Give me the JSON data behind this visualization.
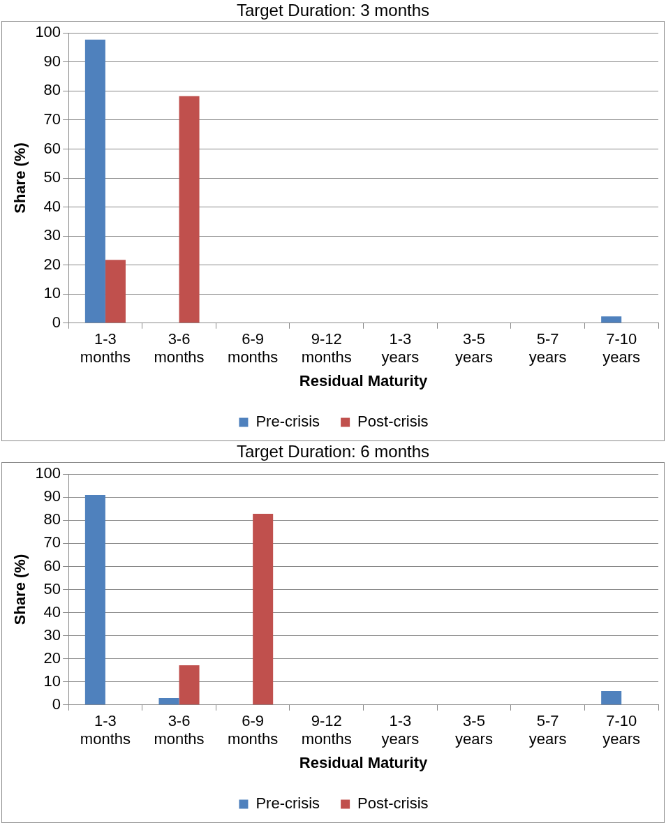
{
  "chart_data": [
    {
      "type": "bar",
      "title": "Target Duration: 3 months",
      "xlabel": "Residual Maturity",
      "ylabel": "Share (%)",
      "categories": [
        "1-3 months",
        "3-6 months",
        "6-9 months",
        "9-12 months",
        "1-3 years",
        "3-5 years",
        "5-7 years",
        "7-10 years"
      ],
      "series": [
        {
          "name": "Pre-crisis",
          "color": "#4f81bd",
          "values": [
            97.7,
            0,
            0,
            0,
            0,
            0,
            0,
            2.3
          ]
        },
        {
          "name": "Post-crisis",
          "color": "#c0504d",
          "values": [
            21.8,
            78.2,
            0,
            0,
            0,
            0,
            0,
            0
          ]
        }
      ],
      "ylim": [
        0,
        100
      ],
      "yticks": [
        0,
        10,
        20,
        30,
        40,
        50,
        60,
        70,
        80,
        90,
        100
      ],
      "grid": "y",
      "legend": "bottom"
    },
    {
      "type": "bar",
      "title": "Target Duration: 6 months",
      "xlabel": "Residual Maturity",
      "ylabel": "Share (%)",
      "categories": [
        "1-3 months",
        "3-6 months",
        "6-9 months",
        "9-12 months",
        "1-3 years",
        "3-5 years",
        "5-7 years",
        "7-10 years"
      ],
      "series": [
        {
          "name": "Pre-crisis",
          "color": "#4f81bd",
          "values": [
            91,
            3,
            0,
            0,
            0,
            0,
            0,
            6
          ]
        },
        {
          "name": "Post-crisis",
          "color": "#c0504d",
          "values": [
            0,
            17.2,
            82.8,
            0,
            0,
            0,
            0,
            0
          ]
        }
      ],
      "ylim": [
        0,
        100
      ],
      "yticks": [
        0,
        10,
        20,
        30,
        40,
        50,
        60,
        70,
        80,
        90,
        100
      ],
      "grid": "y",
      "legend": "bottom"
    }
  ]
}
